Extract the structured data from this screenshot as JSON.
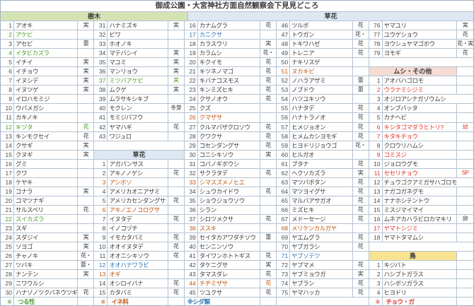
{
  "title": "御成公園・大宮神社方面自然観察会下見見どころ",
  "band": {
    "trees_label": "樹木",
    "flowers_label": "草花"
  },
  "colors": {
    "tree_header_bg": "#d5e3b4",
    "flower_header_bg": "#dde8f3",
    "insect_header_bg": "#f5dcd4",
    "bird_header_bg": "#f7e390",
    "vine_green": "#4f9d31",
    "grass_orange": "#c05a15",
    "fern_blue": "#2f76b5",
    "butterfly_red": "#e33428",
    "grid": "#b5c3d1",
    "text": "#3c3c3c"
  },
  "section_labels": {
    "flowers": "草花",
    "insects": "ムシ・その他",
    "birds": "鳥"
  },
  "columns": [
    [
      {
        "i": "1",
        "name": "アオキ",
        "s": "実"
      },
      {
        "i": "2",
        "name": "アケビ",
        "c": "g"
      },
      {
        "i": "3",
        "name": "アセビ",
        "s": "蕾"
      },
      {
        "i": "4",
        "name": "イタビカズラ",
        "c": "g"
      },
      {
        "i": "5",
        "name": "イチイ",
        "s": "実"
      },
      {
        "i": "6",
        "name": "イチョウ",
        "s": "実"
      },
      {
        "i": "7",
        "name": "イヌシデ",
        "s": "実"
      },
      {
        "i": "8",
        "name": "イヌツゲ",
        "s": "実"
      },
      {
        "i": "9",
        "name": "イロハモミジ"
      },
      {
        "i": "10",
        "name": "ウバメガシ"
      },
      {
        "i": "11",
        "name": "カキノキ"
      },
      {
        "i": "12",
        "name": "キヅタ",
        "s": "花",
        "c": "g"
      },
      {
        "i": "13",
        "name": "キンモクセイ",
        "s": "花"
      },
      {
        "i": "14",
        "name": "クサギ",
        "s": "実"
      },
      {
        "i": "15",
        "name": "クヌギ",
        "s": "実"
      },
      {
        "i": "16",
        "name": "グミ"
      },
      {
        "i": "17",
        "name": "クワ"
      },
      {
        "i": "18",
        "name": "ケヤキ"
      },
      {
        "i": "19",
        "name": "コナラ",
        "s": "実"
      },
      {
        "i": "20",
        "name": "コマツナギ"
      },
      {
        "i": "21",
        "name": "サルスベリ",
        "s": "花"
      },
      {
        "i": "22",
        "name": "スイカズラ",
        "c": "g"
      },
      {
        "i": "23",
        "name": "スギ"
      },
      {
        "i": "24",
        "name": "スダジイ",
        "s": "実"
      },
      {
        "i": "25",
        "name": "ソヨゴ",
        "s": "実"
      },
      {
        "i": "26",
        "name": "チャノキ",
        "s": "花・実"
      },
      {
        "i": "27",
        "name": "ツバキ",
        "s": "蕾・実"
      },
      {
        "i": "28",
        "name": "ナンテン",
        "s": "実"
      },
      {
        "i": "29",
        "name": "ニワウルシ"
      },
      {
        "i": "30",
        "name": "ハナゾノツクバネウツギ",
        "s": "花"
      },
      {
        "t": "note",
        "mark": "※",
        "label": "つる性",
        "c": "g"
      }
    ],
    [
      {
        "i": "31",
        "name": "ハナミズキ",
        "s": "実"
      },
      {
        "i": "32",
        "name": "ビワ"
      },
      {
        "i": "33",
        "name": "ホオノキ"
      },
      {
        "i": "34",
        "name": "マテバシイ",
        "s": "実"
      },
      {
        "i": "35",
        "name": "マユミ",
        "s": "実"
      },
      {
        "i": "36",
        "name": "マンリョウ",
        "s": "実"
      },
      {
        "i": "37",
        "name": "ミツバアケビ",
        "s": "実",
        "c": "g"
      },
      {
        "i": "38",
        "name": "ムクゲ",
        "s": "実"
      },
      {
        "i": "39",
        "name": "ムラサキシキブ"
      },
      {
        "i": "40",
        "name": "モクレン",
        "s": "冬芽"
      },
      {
        "i": "41",
        "name": "モミジバフウ"
      },
      {
        "i": "42",
        "name": "ヤマハギ",
        "s": "花"
      },
      {
        "i": "43",
        "name": "ワジュロ"
      },
      {
        "t": "blank"
      },
      {
        "t": "header",
        "label": "草花",
        "bg": "flower",
        "full": true
      },
      {
        "i": "1",
        "name": "アガパンサス"
      },
      {
        "i": "2",
        "name": "アキノノゲシ",
        "s": "花"
      },
      {
        "i": "3",
        "name": "アシボソ",
        "c": "o"
      },
      {
        "i": "4",
        "name": "アメリカオニアザミ"
      },
      {
        "i": "5",
        "name": "アメリカセンダングサ",
        "s": "花"
      },
      {
        "i": "6",
        "name": "アキノエノコログサ",
        "c": "o"
      },
      {
        "i": "7",
        "name": "イヌタデ",
        "s": "花"
      },
      {
        "i": "8",
        "name": "イノコヅチ"
      },
      {
        "i": "9",
        "name": "イモカタバミ",
        "s": "花"
      },
      {
        "i": "10",
        "name": "オオイヌタデ",
        "s": "花"
      },
      {
        "i": "11",
        "name": "オオニシキソウ",
        "s": "花"
      },
      {
        "i": "12",
        "name": "オオハナワラビ",
        "c": "b"
      },
      {
        "i": "13",
        "name": "オギ",
        "c": "o"
      },
      {
        "i": "14",
        "name": "オシロイバナ",
        "s": "花"
      },
      {
        "i": "15",
        "name": "カタバミ",
        "s": "花"
      },
      {
        "t": "note",
        "mark": "※",
        "label": "イネ科",
        "c": "o"
      }
    ],
    [
      {
        "i": "16",
        "name": "カナムグラ",
        "s": "花"
      },
      {
        "i": "17",
        "name": "カニクサ",
        "c": "b"
      },
      {
        "i": "18",
        "name": "カラスウリ",
        "s": "実"
      },
      {
        "i": "19",
        "name": "カラムシ",
        "s": "花・実"
      },
      {
        "i": "20",
        "name": "キクイモ",
        "s": "花"
      },
      {
        "i": "21",
        "name": "キツネノマゴ",
        "s": "花"
      },
      {
        "i": "22",
        "name": "キバナコスモス",
        "s": "花"
      },
      {
        "i": "23",
        "name": "キンミズヒキ",
        "s": "花"
      },
      {
        "i": "24",
        "name": "クサノオウ",
        "s": "花"
      },
      {
        "i": "25",
        "name": "クズ"
      },
      {
        "i": "26",
        "name": "クマザサ",
        "c": "o"
      },
      {
        "i": "27",
        "name": "クルマバザクロソウ",
        "s": "花"
      },
      {
        "i": "28",
        "name": "クワクサ",
        "s": "花"
      },
      {
        "i": "29",
        "name": "コセンダングサ",
        "s": "花"
      },
      {
        "i": "30",
        "name": "コニシキソウ",
        "s": "実"
      },
      {
        "i": "31",
        "name": "コバノギボウシ"
      },
      {
        "i": "32",
        "name": "サクラタデ",
        "s": "花"
      },
      {
        "i": "33",
        "name": "シマスズメノヒエ",
        "c": "o"
      },
      {
        "i": "34",
        "name": "シュウカイドウ",
        "s": "花"
      },
      {
        "i": "35",
        "name": "ショウジョウソウ"
      },
      {
        "i": "36",
        "name": "シラン"
      },
      {
        "i": "37",
        "name": "シロツメクサ",
        "s": "花"
      },
      {
        "i": "38",
        "name": "ススキ",
        "c": "o"
      },
      {
        "i": "39",
        "name": "セイタカアワダチソウ",
        "s": "蕾"
      },
      {
        "i": "40",
        "name": "センニンソウ"
      },
      {
        "i": "41",
        "name": "タイワンホトトギス",
        "s": "花"
      },
      {
        "i": "42",
        "name": "タケニグサ",
        "s": "実"
      },
      {
        "i": "43",
        "name": "タマスダレ",
        "s": "花"
      },
      {
        "i": "44",
        "name": "チヂミザサ",
        "s": "花",
        "c": "o"
      },
      {
        "i": "45",
        "name": "ツユクサ",
        "s": "花"
      },
      {
        "t": "note",
        "joined": true,
        "label": "※シダ類",
        "c": "b"
      }
    ],
    [
      {
        "i": "46",
        "name": "ツルボ",
        "s": "花"
      },
      {
        "i": "47",
        "name": "トウガン",
        "s": "花・実"
      },
      {
        "i": "48",
        "name": "トキワハゼ",
        "s": "花"
      },
      {
        "i": "49",
        "name": "トレニア",
        "s": "花"
      },
      {
        "i": "50",
        "name": "ナキリスゲ"
      },
      {
        "i": "51",
        "name": "ヌカキビ",
        "c": "o"
      },
      {
        "i": "52",
        "name": "ノハラアザミ",
        "s": "蕾"
      },
      {
        "i": "53",
        "name": "ノブドウ",
        "s": "蕾"
      },
      {
        "i": "54",
        "name": "ハツユキソウ"
      },
      {
        "i": "55",
        "name": "ハナタデ",
        "s": "花"
      },
      {
        "i": "56",
        "name": "ハナトラノオ",
        "s": "花"
      },
      {
        "i": "57",
        "name": "ヒメジョオン",
        "s": "花"
      },
      {
        "i": "58",
        "name": "ヒメムカシヨモギ",
        "s": "花"
      },
      {
        "i": "59",
        "name": "ヒヨドリジョウゴ",
        "s": "花・実"
      },
      {
        "i": "60",
        "name": "ヒルガオ"
      },
      {
        "i": "61",
        "name": "ブタナ",
        "s": "花"
      },
      {
        "i": "62",
        "name": "ヘクソカズラ",
        "s": "実"
      },
      {
        "i": "63",
        "name": "マツバボタン",
        "s": "花"
      },
      {
        "i": "64",
        "name": "マツヨイグサ",
        "s": "花"
      },
      {
        "i": "65",
        "name": "マルバアサガオ",
        "s": "花"
      },
      {
        "i": "66",
        "name": "ミズヒキ",
        "s": "花"
      },
      {
        "i": "67",
        "name": "メドーセージ",
        "s": "花"
      },
      {
        "i": "68",
        "name": "メリケンカルガヤ",
        "c": "o"
      },
      {
        "i": "69",
        "name": "ヤエムグラ",
        "s": "花"
      },
      {
        "i": "70",
        "name": "ヤブガラシ",
        "s": "花"
      },
      {
        "i": "71",
        "name": "ヤブソテツ",
        "c": "b"
      },
      {
        "i": "72",
        "name": "ヤブマメ",
        "s": "花"
      },
      {
        "i": "73",
        "name": "ヤブミョウガ",
        "s": "実"
      },
      {
        "i": "74",
        "name": "ヤブラン",
        "s": "花"
      },
      {
        "i": "75",
        "name": "ヤマハッカ",
        "s": "花"
      },
      {
        "t": "blank"
      }
    ],
    [
      {
        "i": "76",
        "name": "ヤマユリ",
        "s": "実"
      },
      {
        "i": "77",
        "name": "ユウゲショウ",
        "s": "花"
      },
      {
        "i": "78",
        "name": "ヨウシュヤマゴボウ",
        "s": "花・実"
      },
      {
        "i": "79",
        "name": "ヨモギ",
        "s": "花"
      },
      {
        "t": "blank"
      },
      {
        "t": "header",
        "label": "ムシ・その他",
        "bg": "insect"
      },
      {
        "i": "1",
        "name": "アオバハゴロモ"
      },
      {
        "i": "2",
        "name": "ウラナミシジミ",
        "c": "r"
      },
      {
        "i": "3",
        "name": "オジロアシナガゾウムシ"
      },
      {
        "i": "4",
        "name": "オンブバッタ"
      },
      {
        "i": "5",
        "name": "カナヘビ"
      },
      {
        "i": "6",
        "name": "キシタゴマダラヒトリ?",
        "s": "幼",
        "c": "r"
      },
      {
        "i": "7",
        "name": "キタキチョウ",
        "c": "r"
      },
      {
        "i": "8",
        "name": "クロウリハムシ"
      },
      {
        "i": "9",
        "name": "コミスジ",
        "c": "r"
      },
      {
        "i": "10",
        "name": "ジョロウグモ"
      },
      {
        "i": "11",
        "name": "セセリチョウ",
        "s": "SP",
        "c": "r"
      },
      {
        "i": "12",
        "name": "チュウゴクアミガサハゴロモ"
      },
      {
        "i": "13",
        "name": "ナガコガネグモ"
      },
      {
        "i": "14",
        "name": "ナナホシテントウ"
      },
      {
        "i": "15",
        "name": "ミスジマイマイ"
      },
      {
        "i": "16",
        "name": "ムネアカハラビロカマキリ",
        "s": "卵"
      },
      {
        "i": "17",
        "name": "ヤマトシジミ",
        "c": "r"
      },
      {
        "i": "18",
        "name": "ヤマトタマムシ"
      },
      {
        "t": "blank"
      },
      {
        "t": "header",
        "label": "鳥",
        "bg": "bird"
      },
      {
        "i": "1",
        "name": "キジバト"
      },
      {
        "i": "2",
        "name": "ハシブトガラス"
      },
      {
        "i": "3",
        "name": "ハシボソガラス"
      },
      {
        "i": "4",
        "name": "ヒヨドリ"
      },
      {
        "t": "note",
        "mark": "※",
        "label": "チョウ・ガ",
        "c": "r"
      }
    ]
  ]
}
